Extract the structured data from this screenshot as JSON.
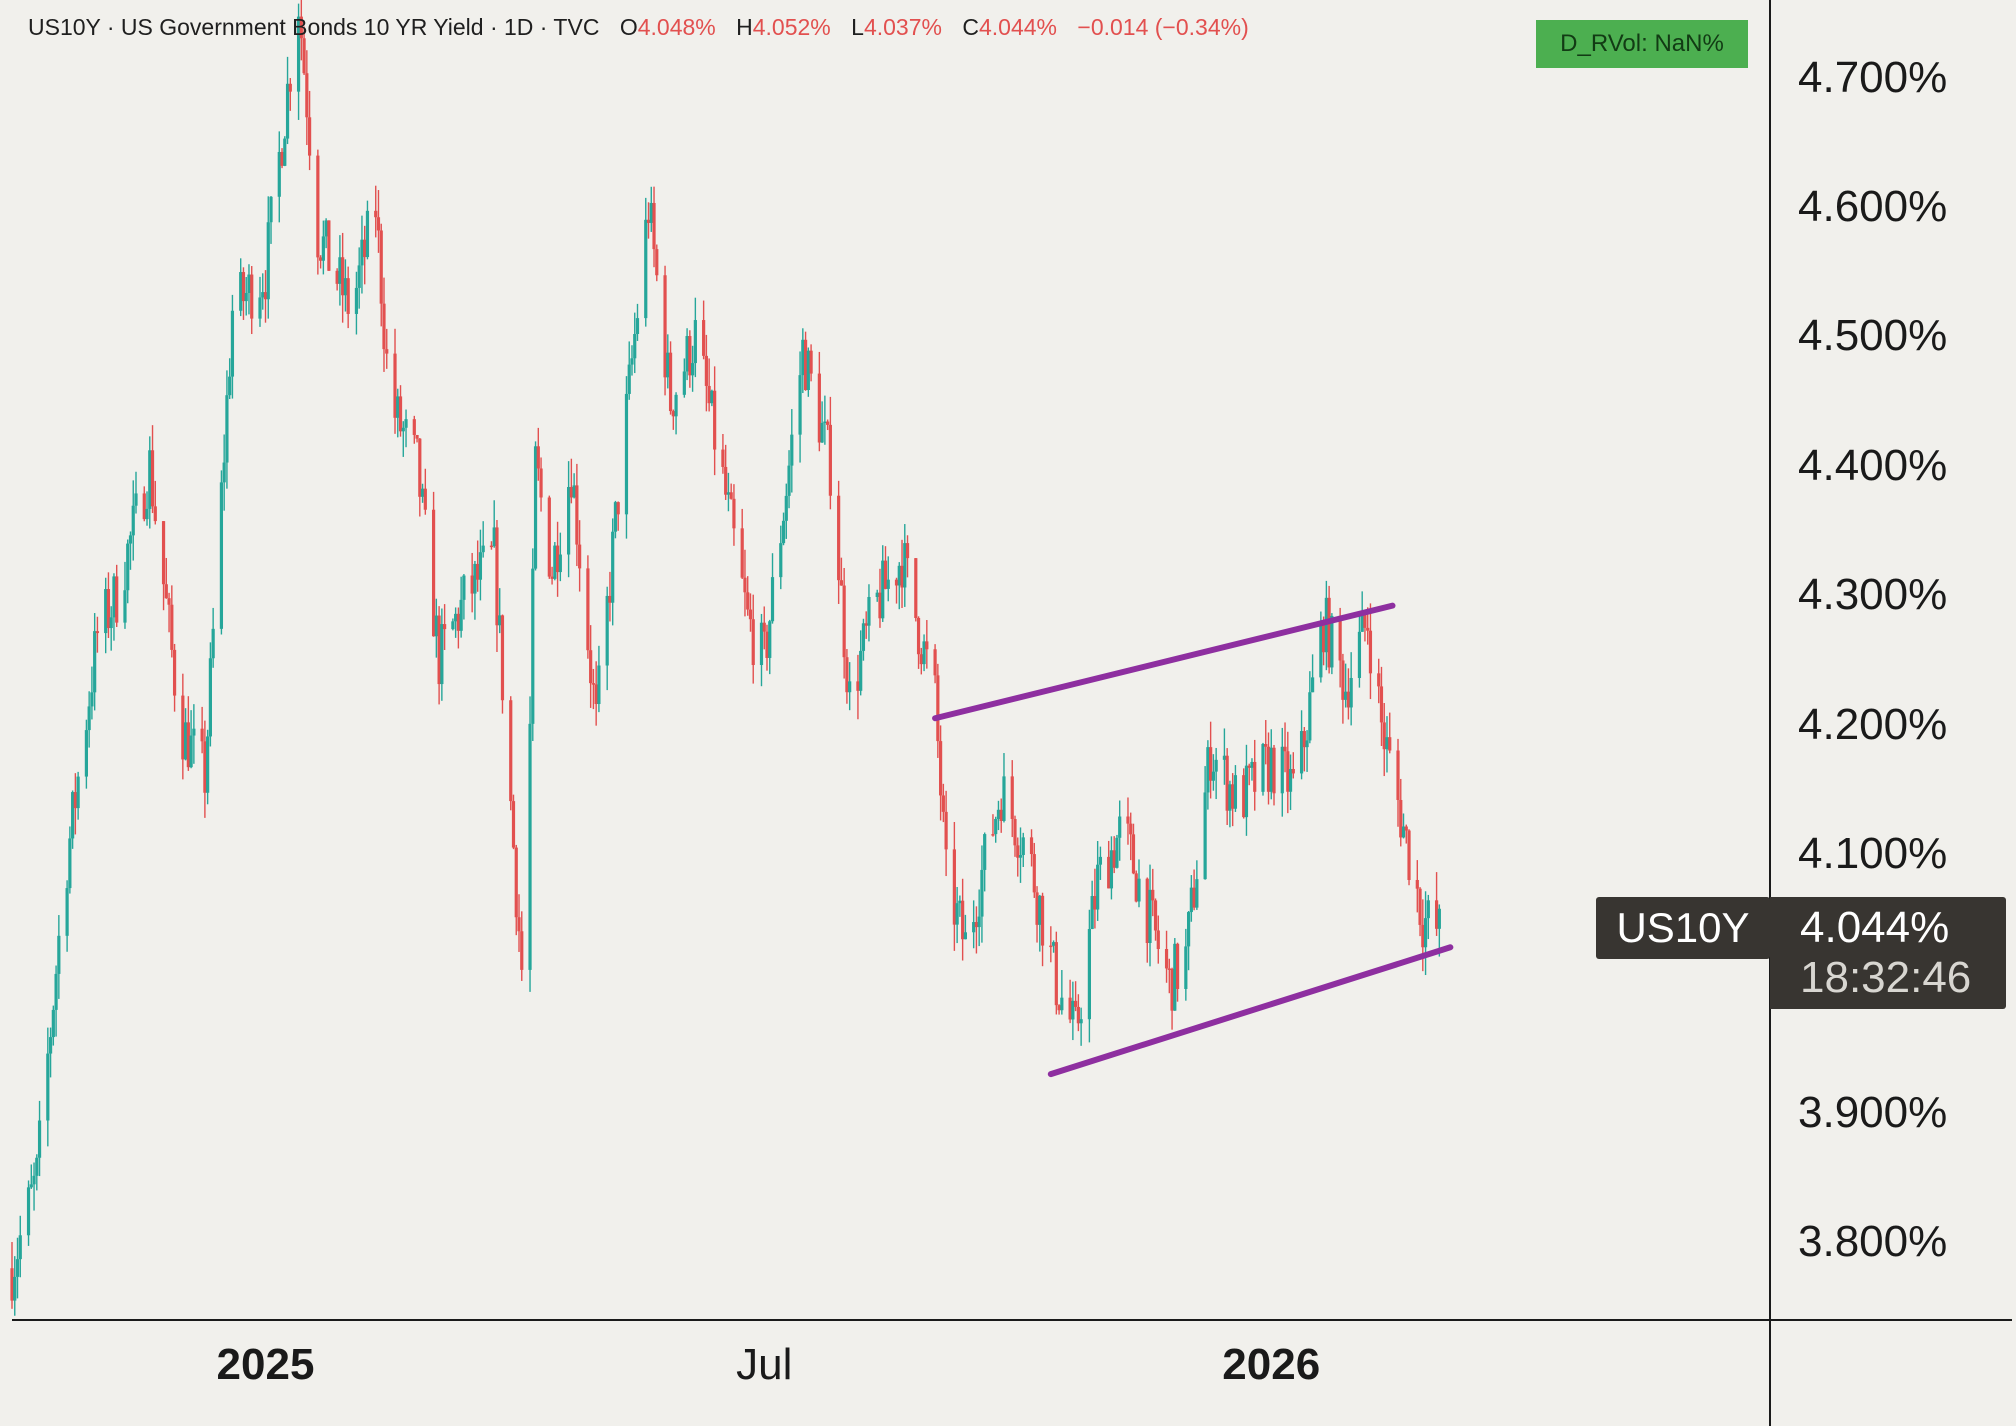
{
  "header": {
    "symbol_line": "US10Y · US Government Bonds 10 YR Yield · 1D · TVC",
    "open_label": "O",
    "open_value": "4.048%",
    "high_label": "H",
    "high_value": "4.052%",
    "low_label": "L",
    "low_value": "4.037%",
    "close_label": "C",
    "close_value": "4.044%",
    "change": "−0.014 (−0.34%)"
  },
  "indicator_badge": "D_RVol: NaN%",
  "price_tag": {
    "symbol": "US10Y",
    "price": "4.044%",
    "countdown": "18:32:46"
  },
  "colors": {
    "background": "#f1f0ec",
    "up": "#26a69a",
    "down": "#e2504f",
    "trendline": "#8e2fa0",
    "badge": "#4caf50"
  },
  "chart_data": {
    "type": "candlestick",
    "title": "US10Y · US Government Bonds 10 YR Yield · 1D · TVC",
    "y_tick_labels": [
      "4.700%",
      "4.600%",
      "4.500%",
      "4.400%",
      "4.300%",
      "4.200%",
      "4.100%",
      "3.900%",
      "3.800%"
    ],
    "y_ticks": [
      4.7,
      4.6,
      4.5,
      4.4,
      4.3,
      4.2,
      4.1,
      3.9,
      3.8
    ],
    "ylim": [
      3.74,
      4.76
    ],
    "x_tick_labels": [
      "2025",
      "Jul",
      "2026"
    ],
    "x_ticks": [
      "2025-01-01",
      "2025-07-01",
      "2026-01-01"
    ],
    "xlim": [
      "2024-10-01",
      "2026-07-01"
    ],
    "close_path": [
      [
        "2024-10-01",
        3.78
      ],
      [
        "2024-10-10",
        3.85
      ],
      [
        "2024-10-20",
        4.08
      ],
      [
        "2024-11-01",
        4.27
      ],
      [
        "2024-11-08",
        4.3
      ],
      [
        "2024-11-20",
        4.4
      ],
      [
        "2024-12-01",
        4.2
      ],
      [
        "2024-12-10",
        4.16
      ],
      [
        "2024-12-20",
        4.52
      ],
      [
        "2025-01-01",
        4.55
      ],
      [
        "2025-01-13",
        4.76
      ],
      [
        "2025-01-20",
        4.58
      ],
      [
        "2025-02-01",
        4.52
      ],
      [
        "2025-02-10",
        4.6
      ],
      [
        "2025-02-15",
        4.45
      ],
      [
        "2025-02-25",
        4.4
      ],
      [
        "2025-03-05",
        4.25
      ],
      [
        "2025-03-15",
        4.3
      ],
      [
        "2025-03-25",
        4.33
      ],
      [
        "2025-04-04",
        4.01
      ],
      [
        "2025-04-05",
        3.99
      ],
      [
        "2025-04-09",
        4.4
      ],
      [
        "2025-04-15",
        4.32
      ],
      [
        "2025-04-22",
        4.4
      ],
      [
        "2025-05-01",
        4.2
      ],
      [
        "2025-05-10",
        4.4
      ],
      [
        "2025-05-20",
        4.6
      ],
      [
        "2025-05-28",
        4.45
      ],
      [
        "2025-06-06",
        4.5
      ],
      [
        "2025-06-15",
        4.4
      ],
      [
        "2025-06-25",
        4.28
      ],
      [
        "2025-07-01",
        4.25
      ],
      [
        "2025-07-10",
        4.4
      ],
      [
        "2025-07-15",
        4.49
      ],
      [
        "2025-07-25",
        4.4
      ],
      [
        "2025-08-01",
        4.22
      ],
      [
        "2025-08-10",
        4.29
      ],
      [
        "2025-08-20",
        4.33
      ],
      [
        "2025-09-01",
        4.22
      ],
      [
        "2025-09-05",
        4.08
      ],
      [
        "2025-09-12",
        4.03
      ],
      [
        "2025-09-25",
        4.15
      ],
      [
        "2025-10-05",
        4.1
      ],
      [
        "2025-10-15",
        4.0
      ],
      [
        "2025-10-22",
        3.96
      ],
      [
        "2025-10-30",
        4.08
      ],
      [
        "2025-11-08",
        4.12
      ],
      [
        "2025-11-15",
        4.07
      ],
      [
        "2025-11-25",
        4.0
      ],
      [
        "2025-12-01",
        4.02
      ],
      [
        "2025-12-10",
        4.18
      ],
      [
        "2025-12-20",
        4.14
      ],
      [
        "2026-01-01",
        4.17
      ],
      [
        "2026-01-10",
        4.15
      ],
      [
        "2026-01-20",
        4.28
      ],
      [
        "2026-01-28",
        4.23
      ],
      [
        "2026-02-05",
        4.28
      ],
      [
        "2026-02-10",
        4.2
      ],
      [
        "2026-02-20",
        4.1
      ],
      [
        "2026-02-25",
        4.05
      ],
      [
        "2026-03-03",
        4.04
      ]
    ],
    "trendlines": [
      {
        "name": "upper",
        "points": [
          [
            "2025-09-01",
            4.205
          ],
          [
            "2026-02-14",
            4.292
          ]
        ]
      },
      {
        "name": "lower",
        "points": [
          [
            "2025-10-13",
            3.93
          ],
          [
            "2026-03-07",
            4.028
          ]
        ]
      }
    ],
    "last_value": 4.044,
    "grid": false,
    "legend": "none"
  }
}
